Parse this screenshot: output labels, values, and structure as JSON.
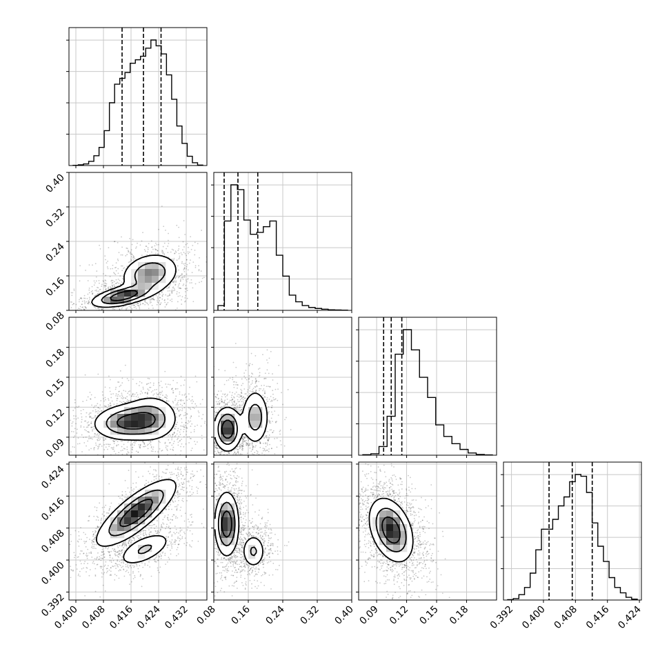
{
  "chart_data": {
    "type": "corner",
    "grid": true,
    "parameters": [
      {
        "range": [
          0.398,
          0.438
        ],
        "ticks": [
          "0.400",
          "0.408",
          "0.416",
          "0.424",
          "0.432"
        ],
        "tick_values": [
          0.4,
          0.408,
          0.416,
          0.424,
          0.432
        ],
        "quantiles": [
          0.4134,
          0.4196,
          0.4247
        ]
      },
      {
        "range": [
          0.08,
          0.4
        ],
        "ticks": [
          "0.08",
          "0.16",
          "0.24",
          "0.32",
          "0.40"
        ],
        "tick_values": [
          0.08,
          0.16,
          0.24,
          0.32,
          0.4
        ],
        "quantiles": [
          0.104,
          0.136,
          0.182
        ]
      },
      {
        "range": [
          0.072,
          0.21
        ],
        "ticks": [
          "0.09",
          "0.12",
          "0.15",
          "0.18"
        ],
        "tick_values": [
          0.09,
          0.12,
          0.15,
          0.18
        ],
        "quantiles": [
          0.097,
          0.1046,
          0.1152
        ]
      },
      {
        "range": [
          0.39,
          0.4245
        ],
        "ticks": [
          "0.392",
          "0.400",
          "0.408",
          "0.416",
          "0.424"
        ],
        "tick_values": [
          0.392,
          0.4,
          0.408,
          0.416,
          0.424
        ],
        "quantiles": [
          0.4014,
          0.4072,
          0.4122
        ]
      }
    ],
    "histograms": [
      {
        "values": [
          1,
          3,
          7,
          18,
          42,
          78,
          150,
          270,
          350,
          375,
          400,
          440,
          455,
          470,
          505,
          540,
          515,
          480,
          390,
          285,
          170,
          95,
          40,
          12,
          2
        ]
      },
      {
        "values": [
          25,
          470,
          660,
          635,
          475,
          400,
          410,
          440,
          470,
          290,
          180,
          80,
          45,
          25,
          15,
          10,
          6,
          3,
          2,
          1
        ]
      },
      {
        "values": [
          3,
          10,
          60,
          270,
          700,
          870,
          730,
          540,
          400,
          210,
          130,
          80,
          40,
          15,
          5,
          2
        ]
      },
      {
        "values": [
          2,
          8,
          30,
          70,
          150,
          280,
          395,
          395,
          450,
          525,
          575,
          660,
          700,
          690,
          600,
          430,
          300,
          215,
          125,
          70,
          40,
          15,
          5
        ]
      }
    ],
    "pairs": [
      {
        "row": 1,
        "col": 0,
        "blobs": [
          {
            "cx": 0.4135,
            "cy": 0.113,
            "sx": 0.0045,
            "sy": 0.013,
            "rho": 0.55,
            "w": 1.0
          },
          {
            "cx": 0.4215,
            "cy": 0.165,
            "sx": 0.0042,
            "sy": 0.024,
            "rho": 0.2,
            "w": 0.7
          }
        ]
      },
      {
        "row": 2,
        "col": 0,
        "blobs": [
          {
            "cx": 0.415,
            "cy": 0.105,
            "sx": 0.005,
            "sy": 0.009,
            "rho": 0.1,
            "w": 1.0
          },
          {
            "cx": 0.422,
            "cy": 0.109,
            "sx": 0.004,
            "sy": 0.012,
            "rho": 0.0,
            "w": 0.6
          }
        ]
      },
      {
        "row": 2,
        "col": 1,
        "blobs": [
          {
            "cx": 0.112,
            "cy": 0.098,
            "sx": 0.016,
            "sy": 0.011,
            "rho": 0.0,
            "w": 1.0
          },
          {
            "cx": 0.176,
            "cy": 0.11,
            "sx": 0.016,
            "sy": 0.014,
            "rho": 0.0,
            "w": 0.6
          }
        ]
      },
      {
        "row": 3,
        "col": 0,
        "blobs": [
          {
            "cx": 0.4175,
            "cy": 0.4118,
            "sx": 0.0058,
            "sy": 0.0042,
            "rho": 0.8,
            "w": 1.0
          },
          {
            "cx": 0.42,
            "cy": 0.4027,
            "sx": 0.004,
            "sy": 0.0022,
            "rho": 0.6,
            "w": 0.45
          }
        ]
      },
      {
        "row": 3,
        "col": 1,
        "blobs": [
          {
            "cx": 0.11,
            "cy": 0.409,
            "sx": 0.014,
            "sy": 0.004,
            "rho": 0.0,
            "w": 1.0
          },
          {
            "cx": 0.172,
            "cy": 0.4022,
            "sx": 0.014,
            "sy": 0.0022,
            "rho": 0.0,
            "w": 0.45
          }
        ]
      },
      {
        "row": 3,
        "col": 2,
        "blobs": [
          {
            "cx": 0.1045,
            "cy": 0.4075,
            "sx": 0.011,
            "sy": 0.004,
            "rho": -0.35,
            "w": 1.0
          }
        ]
      }
    ]
  }
}
